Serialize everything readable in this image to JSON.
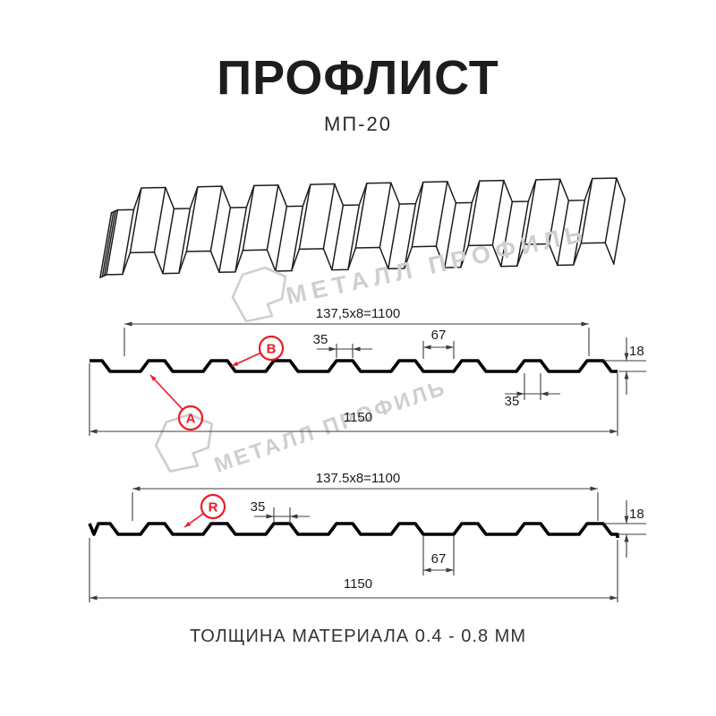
{
  "header": {
    "title": "ПРОФЛИСТ",
    "subtitle": "МП-20"
  },
  "footer": {
    "text": "ТОЛЩИНА МАТЕРИАЛА 0.4 - 0.8 ММ"
  },
  "watermark": {
    "brand": "МЕТАЛЛ ПРОФИЛЬ"
  },
  "colors": {
    "accent_red": "#ed1c24",
    "line_black": "#000000",
    "dim_gray": "#3c3c3c",
    "watermark_gray": "#cfcfcf",
    "background": "#ffffff"
  },
  "profile1": {
    "dim_top": "137,5x8=1100",
    "dim_crest": "35",
    "dim_valley": "67",
    "dim_height": "18",
    "dim_base": "35",
    "dim_total": "1150",
    "label_a": "A",
    "label_b": "B"
  },
  "profile2": {
    "dim_top": "137.5x8=1100",
    "dim_crest": "35",
    "dim_valley": "67",
    "dim_height": "18",
    "dim_total": "1150",
    "label_r": "R"
  }
}
